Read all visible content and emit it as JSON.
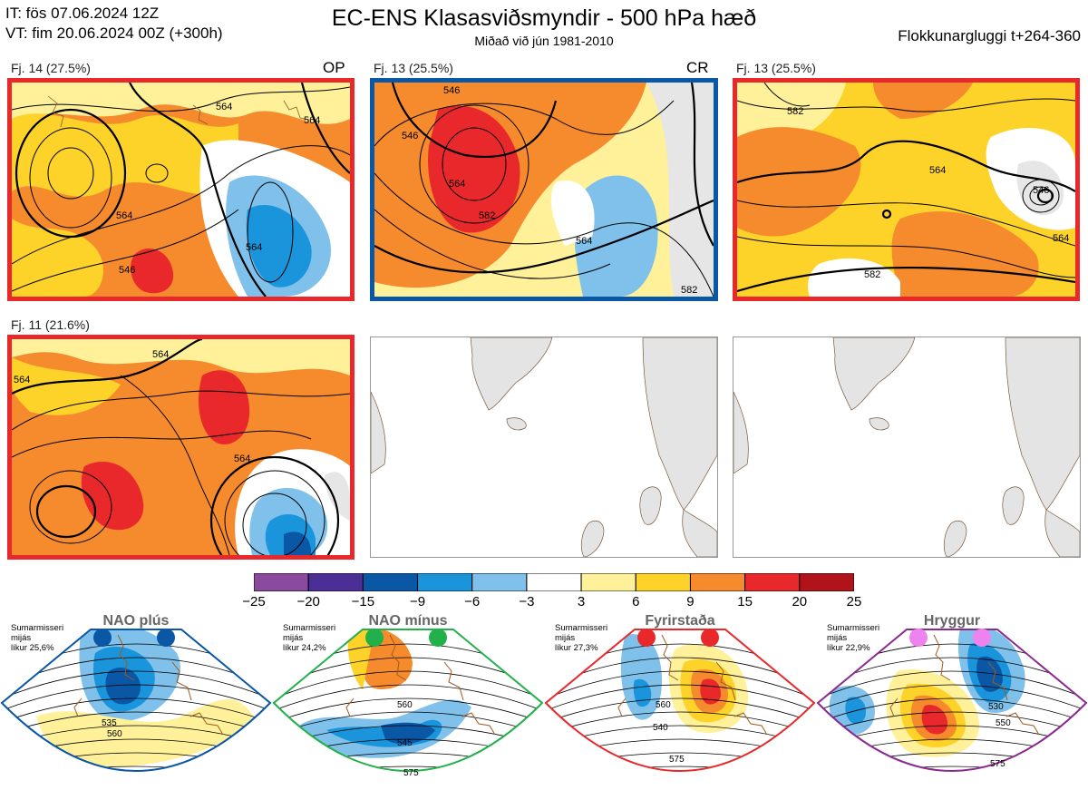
{
  "header": {
    "it_line": "IT: fös 07.06.2024 12Z",
    "vt_line": "VT: fim 20.06.2024 00Z  (+300h)",
    "title": "EC-ENS Klasasviðsmyndir - 500 hPa hæð",
    "subtitle": "Miðað við jún 1981-2010",
    "window": "Flokkunargluggi t+264-360"
  },
  "panels": [
    {
      "label": "Fj. 14 (27.5%)",
      "tag": "OP",
      "border": "#e8282b",
      "contours": [
        "546",
        "564",
        "564",
        "564",
        "564"
      ]
    },
    {
      "label": "Fj. 13 (25.5%)",
      "tag": "CR",
      "border": "#0a57a6",
      "contours": [
        "546",
        "546",
        "564",
        "582",
        "564",
        "582"
      ]
    },
    {
      "label": "Fj. 13 (25.5%)",
      "tag": "",
      "border": "#e8282b",
      "contours": [
        "582",
        "564",
        "546",
        "564",
        "582"
      ]
    },
    {
      "label": "Fj. 11 (21.6%)",
      "tag": "",
      "border": "#e8282b",
      "contours": [
        "564",
        "564",
        "564"
      ]
    }
  ],
  "colorbar": {
    "ticks": [
      "−25",
      "−20",
      "−15",
      "−9",
      "−6",
      "−3",
      "3",
      "6",
      "9",
      "15",
      "20",
      "25"
    ],
    "colors": [
      "#8a4a9e",
      "#4b2f96",
      "#0a57a6",
      "#1a95dc",
      "#7fc1ea",
      "#ffffff",
      "#fff09a",
      "#fdd32a",
      "#f68b2e",
      "#e8282b",
      "#b0141a"
    ]
  },
  "regimes": [
    {
      "name": "NAO plús",
      "info1": "Sumarmisseri",
      "info2": "mijás",
      "info3": "líkur 25,6%",
      "dot_color": "#0a57a6",
      "frame_color": "#0a57a6",
      "contours": [
        "535",
        "560"
      ]
    },
    {
      "name": "NAO mínus",
      "info1": "Sumarmisseri",
      "info2": "mijás",
      "info3": "líkur 24,2%",
      "dot_color": "#22b04b",
      "frame_color": "#22b04b",
      "contours": [
        "545",
        "560",
        "575"
      ]
    },
    {
      "name": "Fyrirstaða",
      "info1": "Sumarmisseri",
      "info2": "mijás",
      "info3": "líkur 27,3%",
      "dot_color": "#e8282b",
      "frame_color": "#e8282b",
      "contours": [
        "540",
        "560",
        "575"
      ]
    },
    {
      "name": "Hryggur",
      "info1": "Sumarmisseri",
      "info2": "mijás",
      "info3": "líkur 22,9%",
      "dot_color": "#ee82ee",
      "frame_color": "#8a2a8e",
      "contours": [
        "530",
        "550",
        "575"
      ]
    }
  ]
}
